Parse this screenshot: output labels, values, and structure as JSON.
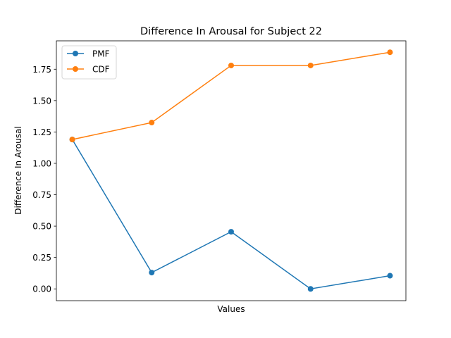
{
  "chart_data": {
    "type": "line",
    "title": "Difference In Arousal for Subject 22",
    "xlabel": "Values",
    "ylabel": "Difference In Arousal",
    "x": [
      1,
      2,
      3,
      4,
      5
    ],
    "xlim": [
      0.8,
      5.2
    ],
    "ylim": [
      -0.094,
      1.976
    ],
    "yticks": [
      "0.00",
      "0.25",
      "0.50",
      "0.75",
      "1.00",
      "1.25",
      "1.50",
      "1.75"
    ],
    "grid": false,
    "legend_position": "upper-left",
    "series": [
      {
        "name": "PMF",
        "color": "#1f77b4",
        "marker": "circle",
        "values": [
          1.19,
          0.13,
          0.455,
          0.0,
          0.105
        ]
      },
      {
        "name": "CDF",
        "color": "#ff7f0e",
        "marker": "circle",
        "values": [
          1.19,
          1.325,
          1.78,
          1.78,
          1.885
        ]
      }
    ]
  }
}
